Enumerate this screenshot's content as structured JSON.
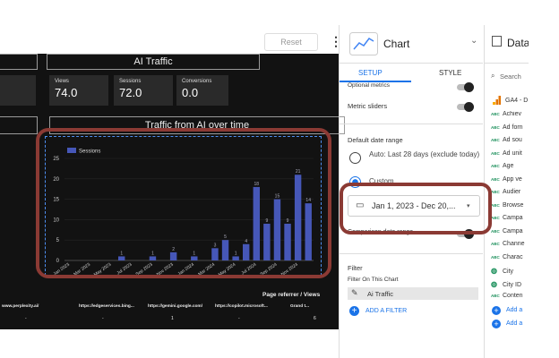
{
  "toolbar": {
    "reset": "Reset"
  },
  "report": {
    "title": "AI Traffic",
    "scorecards": [
      {
        "label": "Views",
        "value": "74.0"
      },
      {
        "label": "Sessions",
        "value": "72.0"
      },
      {
        "label": "Conversions",
        "value": "0.0"
      }
    ],
    "chart_title": "Traffic from AI over time"
  },
  "chart_data": {
    "type": "bar",
    "legend": "Sessions",
    "color": "#4657b8",
    "categories": [
      "Jan 2023",
      null,
      "Mar 2023",
      null,
      "May 2023",
      null,
      "Jul 2023",
      null,
      "Sep 2023",
      null,
      "Nov 2023",
      null,
      "Jan 2024",
      null,
      "Mar 2024",
      null,
      "May 2024",
      null,
      "Jul 2024",
      null,
      "Sep 2024",
      null,
      "Nov 2024",
      null
    ],
    "values": [
      0,
      0,
      0,
      0,
      0,
      1,
      0,
      0,
      1,
      0,
      2,
      0,
      1,
      0,
      3,
      5,
      1,
      4,
      18,
      9,
      15,
      9,
      21,
      14
    ],
    "ylim": [
      0,
      25
    ],
    "yticks": [
      0,
      5,
      10,
      15,
      20,
      25
    ],
    "grid": true
  },
  "table": {
    "title": "Page referrer / Views",
    "columns": [
      "www.perplexity.ai/",
      "https://edgeservices.bing...",
      "https://gemini.google.com/",
      "https://copilot.microsoft...",
      "Grand t..."
    ],
    "rows": [
      [
        "-",
        "-",
        "1",
        "-",
        "6"
      ]
    ]
  },
  "setup_panel": {
    "title": "Chart",
    "tabs": [
      "SETUP",
      "STYLE"
    ],
    "optional_metrics": "Optional metrics",
    "metric_sliders": "Metric sliders",
    "default_date_range": "Default date range",
    "auto_option": "Auto: Last 28 days (exclude today)",
    "custom_option": "Custom",
    "date_value": "Jan 1, 2023 - Dec 20,...",
    "comparison": "Comparison date range",
    "filter": "Filter",
    "filter_on_chart": "Filter On This Chart",
    "filter_chip": "Ai Traffic",
    "add_filter": "ADD A FILTER"
  },
  "data_panel": {
    "title": "Data",
    "search": "Search",
    "source": "GA4 - D",
    "fields": [
      {
        "type": "ABC",
        "name": "Achiev"
      },
      {
        "type": "ABC",
        "name": "Ad forn"
      },
      {
        "type": "ABC",
        "name": "Ad sou"
      },
      {
        "type": "ABC",
        "name": "Ad unit"
      },
      {
        "type": "ABC",
        "name": "Age"
      },
      {
        "type": "ABC",
        "name": "App ve"
      },
      {
        "type": "ABC",
        "name": "Audier"
      },
      {
        "type": "ABC",
        "name": "Browse"
      },
      {
        "type": "ABC",
        "name": "Campa"
      },
      {
        "type": "ABC",
        "name": "Campa"
      },
      {
        "type": "ABC",
        "name": "Channe"
      },
      {
        "type": "ABC",
        "name": "Charac"
      },
      {
        "name": "City"
      },
      {
        "name": "City ID"
      },
      {
        "type": "ABC",
        "name": "Conten"
      }
    ],
    "add": [
      "Add a",
      "Add a"
    ]
  }
}
